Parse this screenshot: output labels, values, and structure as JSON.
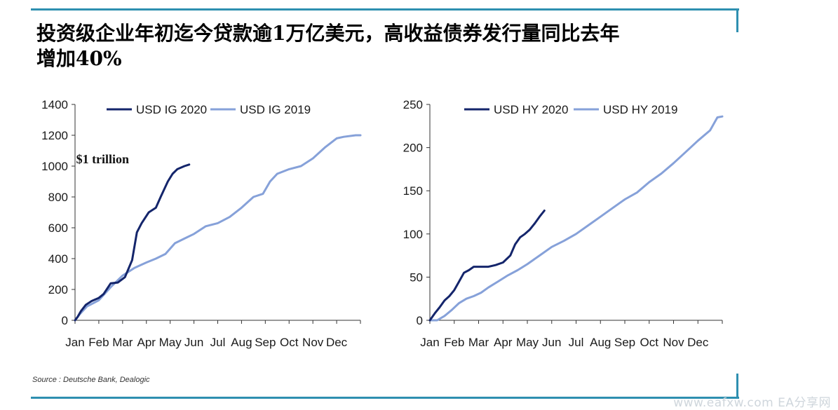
{
  "headline": {
    "line1": "投资级企业年初迄今贷款逾1万亿美元，高收益债券发行量同比去年",
    "line2": "增加40%"
  },
  "source": "Source : Deutsche Bank, Dealogic",
  "watermark": "www.eafxw.com  EA分享网",
  "colors": {
    "dark_series": "#14256b",
    "light_series": "#86a1d9",
    "rule": "#2e8fb0"
  },
  "chart_data": [
    {
      "type": "line",
      "title": "",
      "xlabel": "",
      "ylabel": "",
      "months": [
        "Jan",
        "Feb",
        "Mar",
        "Apr",
        "May",
        "Jun",
        "Jul",
        "Aug",
        "Sep",
        "Oct",
        "Nov",
        "Dec"
      ],
      "xlim": [
        0,
        12
      ],
      "ylim": [
        0,
        1400
      ],
      "yticks": [
        0,
        200,
        400,
        600,
        800,
        1000,
        1200,
        1400
      ],
      "legend_position": "top",
      "annotation": {
        "text": "$1 trillion",
        "x": 2.7,
        "y": 1000
      },
      "series": [
        {
          "name": "USD IG 2020",
          "color": "#14256b",
          "x": [
            0.0,
            0.1,
            0.25,
            0.45,
            0.7,
            1.0,
            1.2,
            1.5,
            1.8,
            2.1,
            2.4,
            2.6,
            2.8,
            3.1,
            3.4,
            3.6,
            3.9,
            4.1,
            4.3,
            4.6,
            4.8
          ],
          "y": [
            0,
            20,
            60,
            100,
            125,
            145,
            170,
            240,
            245,
            280,
            390,
            570,
            630,
            700,
            730,
            800,
            900,
            950,
            980,
            1000,
            1010
          ]
        },
        {
          "name": "USD IG 2019",
          "color": "#86a1d9",
          "x": [
            0.0,
            0.2,
            0.5,
            1.0,
            1.5,
            2.0,
            2.5,
            3.0,
            3.4,
            3.8,
            4.2,
            4.6,
            5.0,
            5.5,
            6.0,
            6.5,
            7.0,
            7.5,
            7.9,
            8.2,
            8.5,
            9.0,
            9.5,
            10.0,
            10.5,
            11.0,
            11.3,
            11.8,
            12.0
          ],
          "y": [
            0,
            40,
            90,
            130,
            215,
            290,
            340,
            375,
            400,
            430,
            500,
            530,
            560,
            610,
            630,
            670,
            730,
            800,
            820,
            900,
            950,
            980,
            1000,
            1050,
            1120,
            1180,
            1190,
            1200,
            1200
          ]
        }
      ]
    },
    {
      "type": "line",
      "title": "",
      "xlabel": "",
      "ylabel": "",
      "months": [
        "Jan",
        "Feb",
        "Mar",
        "Apr",
        "May",
        "Jun",
        "Jul",
        "Aug",
        "Sep",
        "Oct",
        "Nov",
        "Dec"
      ],
      "xlim": [
        0,
        12
      ],
      "ylim": [
        0,
        250
      ],
      "yticks": [
        0,
        50,
        100,
        150,
        200,
        250
      ],
      "legend_position": "top",
      "series": [
        {
          "name": "USD HY 2020",
          "color": "#14256b",
          "x": [
            0.0,
            0.2,
            0.4,
            0.6,
            0.8,
            1.0,
            1.2,
            1.4,
            1.6,
            1.8,
            2.1,
            2.4,
            2.7,
            3.0,
            3.3,
            3.5,
            3.7,
            3.9,
            4.1,
            4.3,
            4.5,
            4.7
          ],
          "y": [
            0,
            8,
            15,
            23,
            28,
            35,
            45,
            55,
            58,
            62,
            62,
            62,
            64,
            67,
            75,
            88,
            96,
            100,
            105,
            112,
            120,
            127
          ]
        },
        {
          "name": "USD HY 2019",
          "color": "#86a1d9",
          "x": [
            0.0,
            0.3,
            0.6,
            0.9,
            1.2,
            1.5,
            1.8,
            2.1,
            2.4,
            2.8,
            3.2,
            3.6,
            4.0,
            4.5,
            5.0,
            5.5,
            6.0,
            6.5,
            7.0,
            7.5,
            8.0,
            8.5,
            9.0,
            9.5,
            10.0,
            10.5,
            11.0,
            11.5,
            11.8,
            12.0
          ],
          "y": [
            0,
            0,
            5,
            12,
            20,
            25,
            28,
            32,
            38,
            45,
            52,
            58,
            65,
            75,
            85,
            92,
            100,
            110,
            120,
            130,
            140,
            148,
            160,
            170,
            182,
            195,
            208,
            220,
            235,
            236
          ]
        }
      ]
    }
  ]
}
